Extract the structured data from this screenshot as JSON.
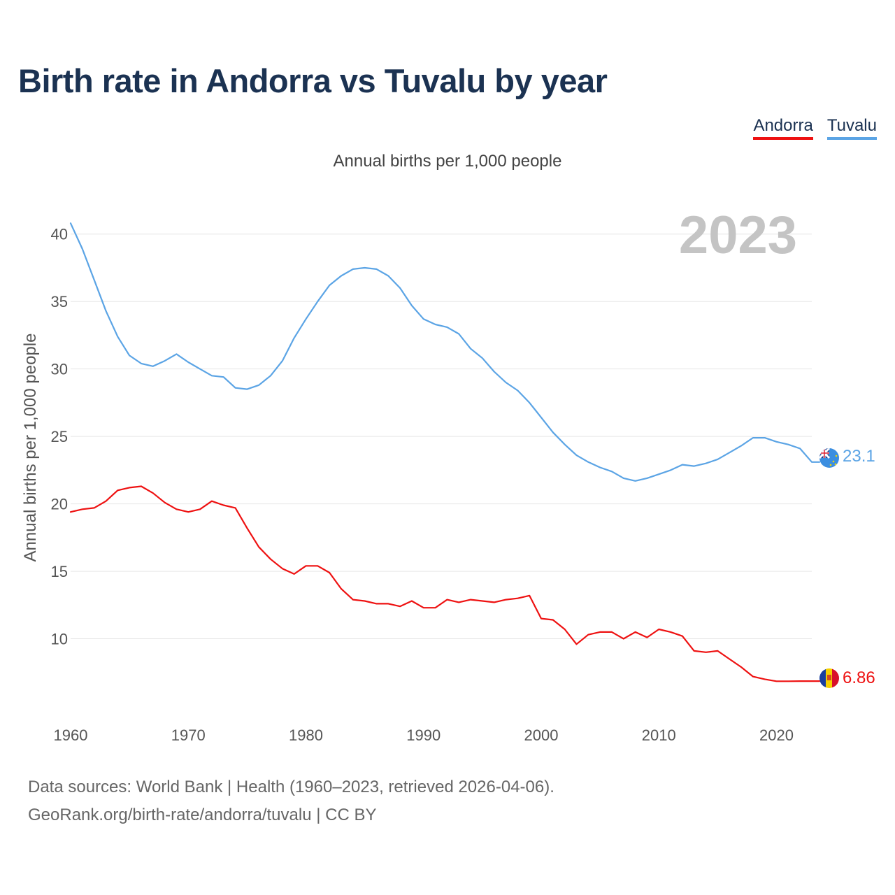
{
  "title": "Birth rate in Andorra vs Tuvalu by year",
  "legend": {
    "andorra": "Andorra",
    "tuvalu": "Tuvalu"
  },
  "subtitle": "Annual births per 1,000 people",
  "source": {
    "line1": "Data sources: World Bank | Health (1960–2023, retrieved 2026-04-06).",
    "line2": "GeoRank.org/birth-rate/andorra/tuvalu | CC BY"
  },
  "colors": {
    "andorra": "#ee1111",
    "tuvalu": "#5ba4e5",
    "grid": "#e6e6e6",
    "axis_text": "#555555",
    "year_watermark": "#c4c4c4"
  },
  "chart_data": {
    "type": "line",
    "title": "Birth rate in Andorra vs Tuvalu by year",
    "ylabel": "Annual births per 1,000 people",
    "xlabel": "",
    "xlim": [
      1960,
      2023
    ],
    "ylim": [
      5,
      41.8
    ],
    "yticks": [
      10,
      15,
      20,
      25,
      30,
      35,
      40
    ],
    "xticks": [
      1960,
      1970,
      1980,
      1990,
      2000,
      2010,
      2020
    ],
    "year_label": "2023",
    "x": [
      1960,
      1961,
      1962,
      1963,
      1964,
      1965,
      1966,
      1967,
      1968,
      1969,
      1970,
      1971,
      1972,
      1973,
      1974,
      1975,
      1976,
      1977,
      1978,
      1979,
      1980,
      1981,
      1982,
      1983,
      1984,
      1985,
      1986,
      1987,
      1988,
      1989,
      1990,
      1991,
      1992,
      1993,
      1994,
      1995,
      1996,
      1997,
      1998,
      1999,
      2000,
      2001,
      2002,
      2003,
      2004,
      2005,
      2006,
      2007,
      2008,
      2009,
      2010,
      2011,
      2012,
      2013,
      2014,
      2015,
      2016,
      2017,
      2018,
      2019,
      2020,
      2021,
      2022,
      2023
    ],
    "series": [
      {
        "name": "Tuvalu",
        "color": "#5ba4e5",
        "end_label": "23.1",
        "values": [
          40.8,
          38.9,
          36.6,
          34.3,
          32.4,
          31.0,
          30.4,
          30.2,
          30.6,
          31.1,
          30.5,
          30.0,
          29.5,
          29.4,
          28.6,
          28.5,
          28.8,
          29.5,
          30.6,
          32.3,
          33.7,
          35.0,
          36.2,
          36.9,
          37.4,
          37.5,
          37.4,
          36.9,
          36.0,
          34.7,
          33.7,
          33.3,
          33.1,
          32.6,
          31.5,
          30.8,
          29.8,
          29.0,
          28.4,
          27.5,
          26.4,
          25.3,
          24.4,
          23.6,
          23.1,
          22.7,
          22.4,
          21.9,
          21.7,
          21.9,
          22.2,
          22.5,
          22.9,
          22.8,
          23.0,
          23.3,
          23.8,
          24.3,
          24.9,
          24.9,
          24.6,
          24.4,
          24.1,
          23.1
        ]
      },
      {
        "name": "Andorra",
        "color": "#ee1111",
        "end_label": "6.86",
        "values": [
          19.4,
          19.6,
          19.7,
          20.2,
          21.0,
          21.2,
          21.3,
          20.8,
          20.1,
          19.6,
          19.4,
          19.6,
          20.2,
          19.9,
          19.7,
          18.2,
          16.8,
          15.9,
          15.2,
          14.8,
          15.4,
          15.4,
          14.9,
          13.7,
          12.9,
          12.8,
          12.6,
          12.6,
          12.4,
          12.8,
          12.3,
          12.3,
          12.9,
          12.7,
          12.9,
          12.8,
          12.7,
          12.9,
          13.0,
          13.2,
          11.5,
          11.4,
          10.7,
          9.6,
          10.3,
          10.5,
          10.5,
          10.0,
          10.5,
          10.1,
          10.7,
          10.5,
          10.2,
          9.1,
          9.0,
          9.1,
          8.5,
          7.9,
          7.2,
          7.0,
          6.85,
          6.85,
          6.86,
          6.86
        ]
      }
    ]
  }
}
